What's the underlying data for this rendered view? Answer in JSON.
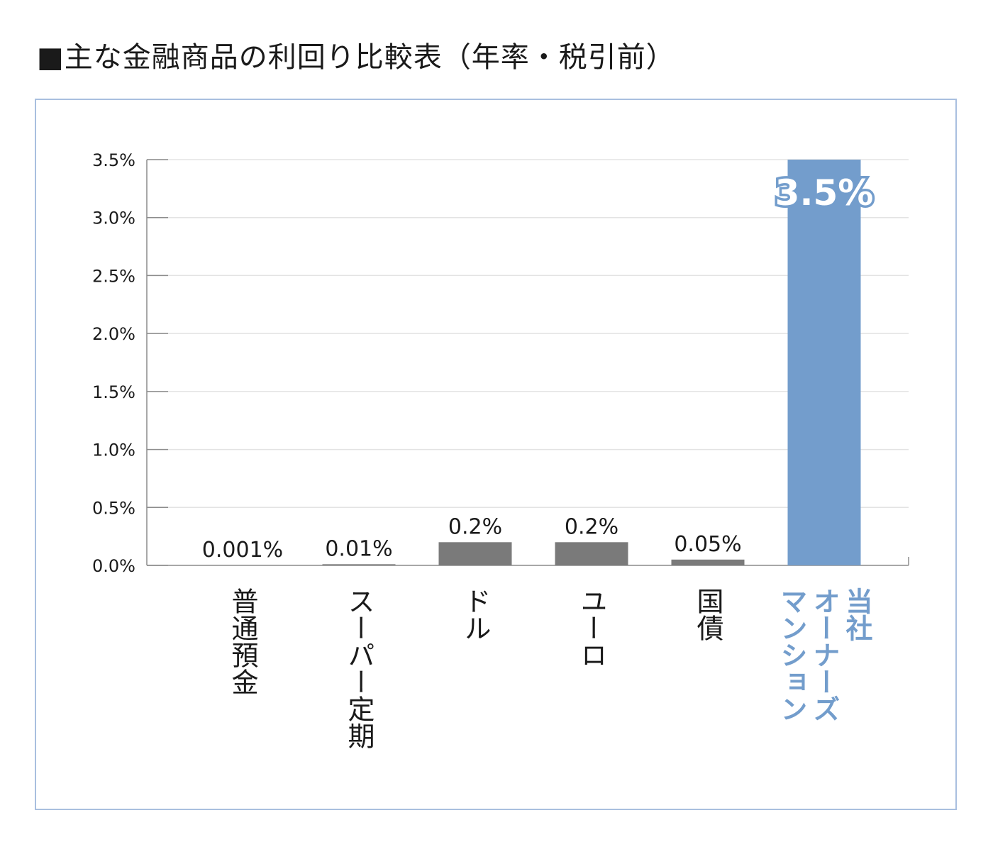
{
  "title": "■主な金融商品の利回り比較表（年率・税引前）",
  "chart_data": {
    "type": "bar",
    "categories": [
      "普通預金",
      "スーパー定期",
      "ドル",
      "ユーロ",
      "国債",
      "当社オーナーズマンション"
    ],
    "category_lines": [
      [
        "普通預金"
      ],
      [
        "スーパー定期"
      ],
      [
        "ドル"
      ],
      [
        "ユーロ"
      ],
      [
        "国債"
      ],
      [
        "当社",
        "オーナーズ",
        "マンション"
      ]
    ],
    "values": [
      0.001,
      0.01,
      0.2,
      0.2,
      0.05,
      3.5
    ],
    "value_labels": [
      "0.001%",
      "0.01%",
      "0.2%",
      "0.2%",
      "0.05%",
      "3.5%"
    ],
    "highlight_index": 5,
    "ylim": [
      0,
      3.5
    ],
    "y_ticks": [
      0,
      0.5,
      1.0,
      1.5,
      2.0,
      2.5,
      3.0,
      3.5
    ],
    "y_tick_labels": [
      "0.0%",
      "0.5%",
      "1.0%",
      "1.5%",
      "2.0%",
      "2.5%",
      "3.0%",
      "3.5%"
    ],
    "grid": true,
    "colors": {
      "default_bar": "#7a7a7a",
      "highlight_bar": "#739dcc",
      "highlight_text": "#739dcc",
      "text": "#1a1a1a",
      "grid": "#e3e3e3",
      "axis": "#8c8c8c",
      "frame": "#a9bfdf"
    }
  }
}
